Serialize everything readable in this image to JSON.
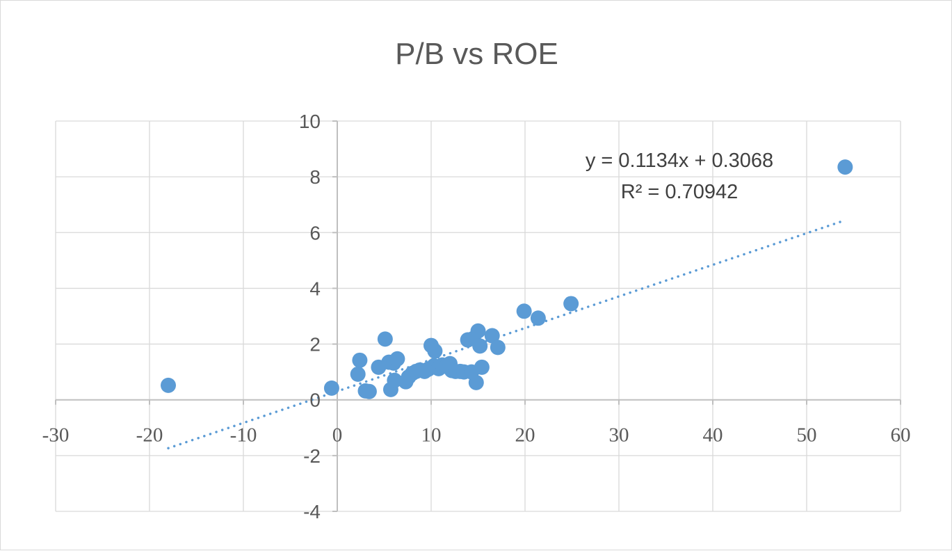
{
  "chart_data": {
    "type": "scatter",
    "title": "P/B vs ROE",
    "xlabel": "",
    "ylabel": "",
    "xlim": [
      -30,
      60
    ],
    "ylim": [
      -4,
      10
    ],
    "x_ticks": [
      -30,
      -20,
      -10,
      0,
      10,
      20,
      30,
      40,
      50,
      60
    ],
    "y_ticks": [
      -4,
      -2,
      0,
      2,
      4,
      6,
      8,
      10
    ],
    "x_tick_labels": [
      "-30",
      "-20",
      "-10",
      "0",
      "10",
      "20",
      "30",
      "40",
      "50",
      "60"
    ],
    "y_tick_labels": [
      "-4",
      "-2",
      "0",
      "2",
      "4",
      "6",
      "8",
      "10"
    ],
    "grid": true,
    "legend": "none",
    "marker_color": "#5b9bd5",
    "series": [
      {
        "points": [
          [
            -18.0,
            0.52
          ],
          [
            -0.6,
            0.42
          ],
          [
            2.2,
            0.92
          ],
          [
            2.4,
            1.42
          ],
          [
            3.0,
            0.32
          ],
          [
            3.4,
            0.3
          ],
          [
            4.4,
            1.17
          ],
          [
            5.1,
            2.18
          ],
          [
            5.5,
            1.35
          ],
          [
            5.7,
            0.37
          ],
          [
            6.0,
            1.32
          ],
          [
            6.1,
            0.7
          ],
          [
            6.4,
            1.47
          ],
          [
            7.3,
            0.65
          ],
          [
            7.6,
            0.82
          ],
          [
            8.0,
            0.95
          ],
          [
            8.4,
            1.02
          ],
          [
            8.8,
            1.07
          ],
          [
            9.3,
            1.02
          ],
          [
            9.7,
            1.1
          ],
          [
            10.0,
            1.95
          ],
          [
            10.3,
            1.22
          ],
          [
            10.4,
            1.75
          ],
          [
            10.8,
            1.12
          ],
          [
            11.2,
            1.25
          ],
          [
            11.6,
            1.2
          ],
          [
            12.0,
            1.3
          ],
          [
            12.2,
            1.05
          ],
          [
            12.6,
            1.02
          ],
          [
            13.1,
            1.02
          ],
          [
            13.5,
            1.0
          ],
          [
            13.9,
            2.15
          ],
          [
            14.3,
            1.0
          ],
          [
            14.5,
            2.2
          ],
          [
            14.8,
            0.62
          ],
          [
            15.0,
            2.47
          ],
          [
            15.2,
            1.93
          ],
          [
            15.4,
            1.17
          ],
          [
            16.5,
            2.3
          ],
          [
            17.1,
            1.88
          ],
          [
            19.9,
            3.18
          ],
          [
            21.4,
            2.93
          ],
          [
            24.9,
            3.45
          ],
          [
            54.1,
            8.35
          ]
        ]
      }
    ],
    "trendline": {
      "type": "linear",
      "slope": 0.1134,
      "intercept": 0.3068,
      "x_range": [
        -18.0,
        54.1
      ],
      "color": "#5b9bd5",
      "style": "dotted",
      "equation_label": "y = 0.1134x + 0.3068",
      "r2_label": "R² = 0.70942"
    }
  }
}
